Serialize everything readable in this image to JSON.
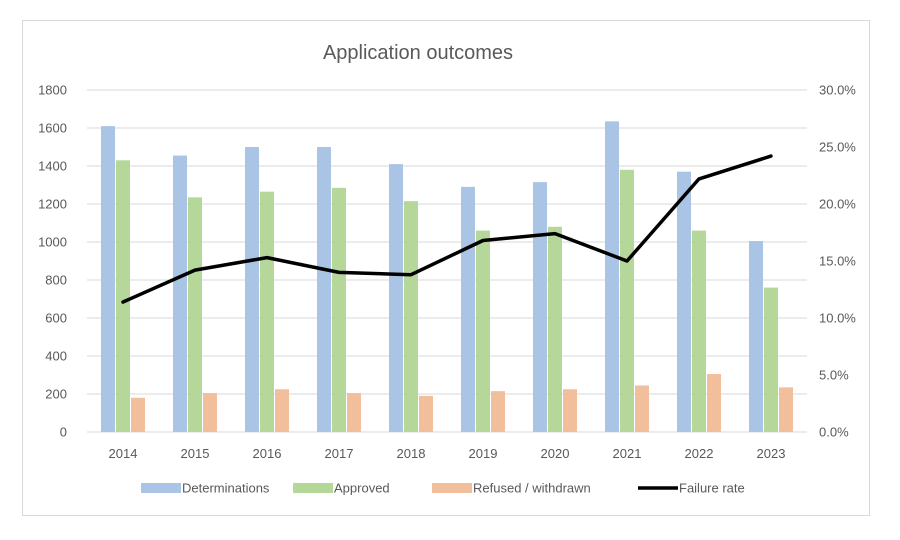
{
  "chart_data": {
    "type": "bar",
    "title": "Application outcomes",
    "xlabel": "",
    "ylabel": "",
    "categories": [
      "2014",
      "2015",
      "2016",
      "2017",
      "2018",
      "2019",
      "2020",
      "2021",
      "2022",
      "2023"
    ],
    "series": [
      {
        "name": "Determinations",
        "type": "bar",
        "axis": "left",
        "color": "#a9c4e4",
        "values": [
          1610,
          1455,
          1500,
          1500,
          1410,
          1290,
          1315,
          1635,
          1370,
          1005
        ]
      },
      {
        "name": "Approved",
        "type": "bar",
        "axis": "left",
        "color": "#b6d79a",
        "values": [
          1430,
          1235,
          1265,
          1285,
          1215,
          1060,
          1080,
          1380,
          1060,
          760
        ]
      },
      {
        "name": "Refused / withdrawn",
        "type": "bar",
        "axis": "left",
        "color": "#f2bf9c",
        "values": [
          180,
          205,
          225,
          205,
          190,
          215,
          225,
          245,
          305,
          235
        ]
      },
      {
        "name": "Failure rate",
        "type": "line",
        "axis": "right",
        "color": "#000000",
        "values": [
          11.4,
          14.2,
          15.3,
          14.0,
          13.8,
          16.8,
          17.4,
          15.0,
          22.2,
          24.2
        ]
      }
    ],
    "y_left": {
      "lim": [
        0,
        1800
      ],
      "ticks": [
        "0",
        "200",
        "400",
        "600",
        "800",
        "1000",
        "1200",
        "1400",
        "1600",
        "1800"
      ]
    },
    "y_right": {
      "lim": [
        0,
        30
      ],
      "ticks": [
        "0.0%",
        "5.0%",
        "10.0%",
        "15.0%",
        "20.0%",
        "25.0%",
        "30.0%"
      ]
    },
    "grid": true,
    "legend_position": "bottom"
  }
}
